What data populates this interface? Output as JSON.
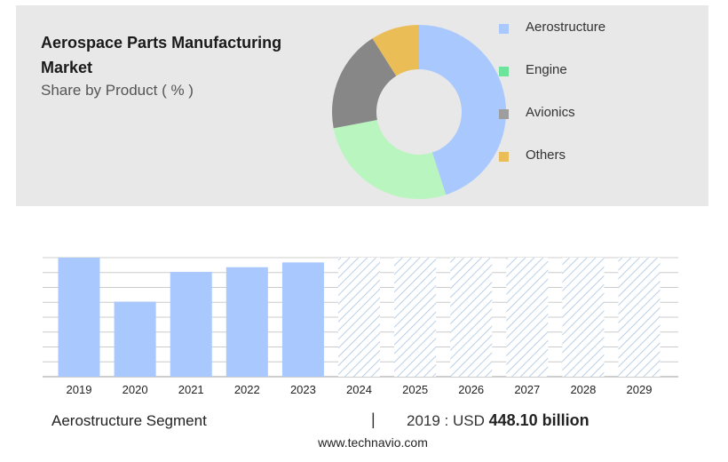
{
  "header": {
    "title": "Aerospace Parts Manufacturing Market",
    "subtitle": "Share by Product ( % )"
  },
  "legend": [
    {
      "label": "Aerostructure",
      "color": "#a9c8fd"
    },
    {
      "label": "Engine",
      "color": "#6ce49b"
    },
    {
      "label": "Avionics",
      "color": "#9e9e9e"
    },
    {
      "label": "Others",
      "color": "#eabd57"
    }
  ],
  "chart_data": [
    {
      "type": "pie",
      "slices": [
        {
          "label": "Aerostructure",
          "value": 45,
          "color": "#a9c8fd"
        },
        {
          "label": "Engine",
          "value": 27,
          "color": "#b9f5bf"
        },
        {
          "label": "Avionics",
          "value": 19,
          "color": "#878787"
        },
        {
          "label": "Others",
          "value": 9,
          "color": "#eabd57"
        }
      ]
    },
    {
      "type": "bar",
      "categories": [
        "2019",
        "2020",
        "2021",
        "2022",
        "2023",
        "2024",
        "2025",
        "2026",
        "2027",
        "2028",
        "2029"
      ],
      "values": [
        100,
        63,
        88,
        92,
        96,
        100,
        100,
        100,
        100,
        100,
        100
      ],
      "forecast_from": "2024",
      "ylim": [
        0,
        100
      ],
      "grid": true,
      "color": "#a9c8fd",
      "forecast_color": "#b9cfe8"
    }
  ],
  "footer": {
    "segment": "Aerostructure Segment",
    "divider": "|",
    "value_prefix": "2019 : USD",
    "value_bold": "448.10 billion",
    "source": "www.technavio.com"
  }
}
